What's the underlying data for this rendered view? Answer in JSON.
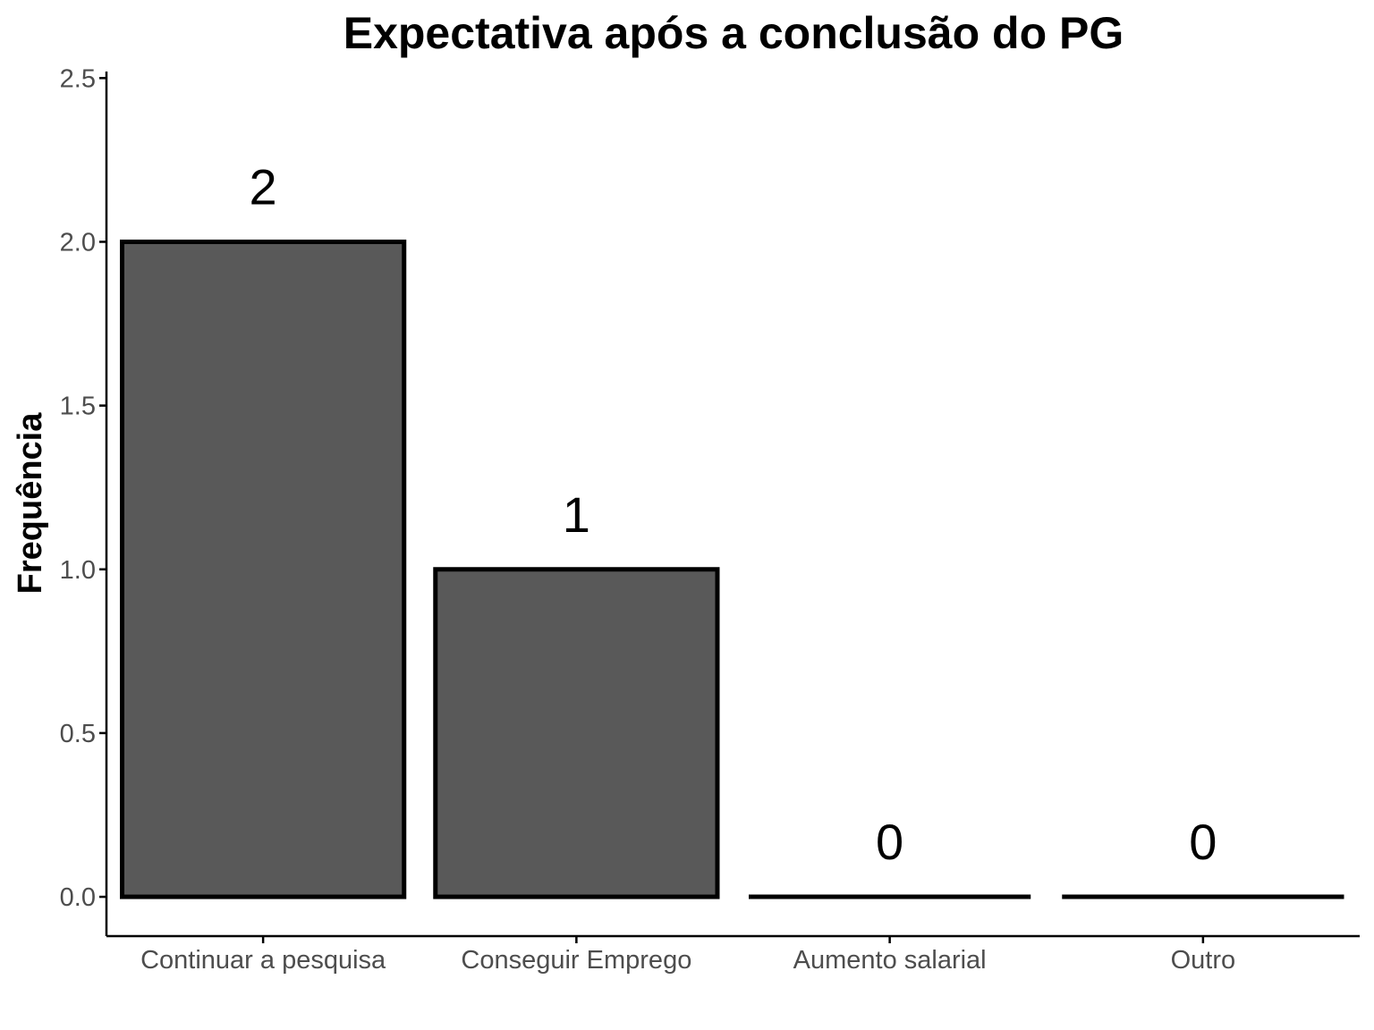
{
  "chart_data": {
    "type": "bar",
    "title": "Expectativa após a conclusão do PG",
    "xlabel": "",
    "ylabel": "Frequência",
    "categories": [
      "Continuar a pesquisa",
      "Conseguir Emprego",
      "Aumento salarial",
      "Outro"
    ],
    "values": [
      2,
      1,
      0,
      0
    ],
    "data_labels": [
      "2",
      "1",
      "0",
      "0"
    ],
    "ylim": [
      -0.12,
      2.52
    ],
    "yticks": [
      0,
      0.5,
      1,
      1.5,
      2,
      2.5
    ],
    "ytick_labels": [
      "0.0",
      "0.5",
      "1.0",
      "1.5",
      "2.0",
      "2.5"
    ],
    "grid": false,
    "legend": "none",
    "colors": {
      "bar_fill": "#595959",
      "bar_outline": "#000000",
      "axis": "#000000",
      "tick_text": "#4d4d4d"
    }
  }
}
